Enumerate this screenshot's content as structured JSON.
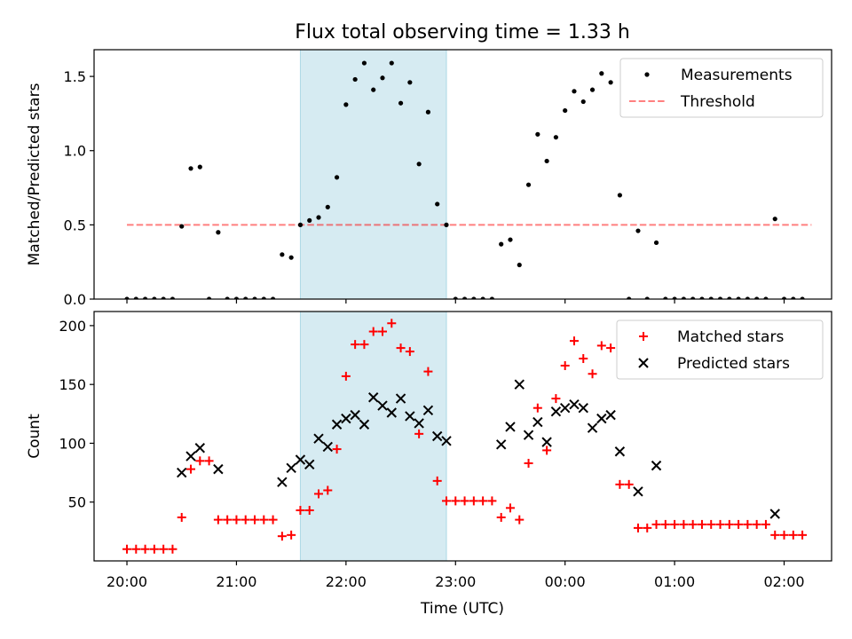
{
  "colors": {
    "span": "#add8e6",
    "measurement": "#000000",
    "threshold": "#ff0000",
    "matched": "#ff0000",
    "predicted": "#000000"
  },
  "chart_data": [
    {
      "type": "scatter",
      "title": "Flux total observing time = 1.33 h",
      "xlabel": "",
      "ylabel": "Matched/Predicted stars",
      "xlim": [
        "19:42",
        "02:26"
      ],
      "ylim": [
        0,
        1.68
      ],
      "yticks": [
        0.0,
        0.5,
        1.0,
        1.5
      ],
      "ytick_labels": [
        "0.0",
        "0.5",
        "1.0",
        "1.5"
      ],
      "xticks": [
        "20:00",
        "21:00",
        "22:00",
        "23:00",
        "00:00",
        "01:00",
        "02:00"
      ],
      "highlight_span": [
        "21:35",
        "22:55"
      ],
      "legend": {
        "position": "top-right",
        "entries": [
          "Measurements",
          "Threshold"
        ]
      },
      "threshold": {
        "name": "Threshold",
        "value": 0.5,
        "x_range": [
          "20:00",
          "02:15"
        ],
        "style": "dashed"
      },
      "series": [
        {
          "name": "Measurements",
          "marker": "dot",
          "points": [
            [
              "20:00",
              0
            ],
            [
              "20:05",
              0
            ],
            [
              "20:10",
              0
            ],
            [
              "20:15",
              0
            ],
            [
              "20:20",
              0
            ],
            [
              "20:25",
              0
            ],
            [
              "20:30",
              0.49
            ],
            [
              "20:35",
              0.88
            ],
            [
              "20:40",
              0.89
            ],
            [
              "20:45",
              0
            ],
            [
              "20:50",
              0.45
            ],
            [
              "20:55",
              0
            ],
            [
              "21:00",
              0
            ],
            [
              "21:05",
              0
            ],
            [
              "21:10",
              0
            ],
            [
              "21:15",
              0
            ],
            [
              "21:20",
              0
            ],
            [
              "21:25",
              0.3
            ],
            [
              "21:30",
              0.28
            ],
            [
              "21:35",
              0.5
            ],
            [
              "21:40",
              0.53
            ],
            [
              "21:45",
              0.55
            ],
            [
              "21:50",
              0.62
            ],
            [
              "21:55",
              0.82
            ],
            [
              "22:00",
              1.31
            ],
            [
              "22:05",
              1.48
            ],
            [
              "22:10",
              1.59
            ],
            [
              "22:15",
              1.41
            ],
            [
              "22:20",
              1.49
            ],
            [
              "22:25",
              1.59
            ],
            [
              "22:30",
              1.32
            ],
            [
              "22:35",
              1.46
            ],
            [
              "22:40",
              0.91
            ],
            [
              "22:45",
              1.26
            ],
            [
              "22:50",
              0.64
            ],
            [
              "22:55",
              0.5
            ],
            [
              "23:00",
              0
            ],
            [
              "23:05",
              0
            ],
            [
              "23:10",
              0
            ],
            [
              "23:15",
              0
            ],
            [
              "23:20",
              0
            ],
            [
              "23:25",
              0.37
            ],
            [
              "23:30",
              0.4
            ],
            [
              "23:35",
              0.23
            ],
            [
              "23:40",
              0.77
            ],
            [
              "23:45",
              1.11
            ],
            [
              "23:50",
              0.93
            ],
            [
              "23:55",
              1.09
            ],
            [
              "00:00",
              1.27
            ],
            [
              "00:05",
              1.4
            ],
            [
              "00:10",
              1.33
            ],
            [
              "00:15",
              1.41
            ],
            [
              "00:20",
              1.52
            ],
            [
              "00:25",
              1.46
            ],
            [
              "00:30",
              0.7
            ],
            [
              "00:35",
              0
            ],
            [
              "00:40",
              0.46
            ],
            [
              "00:45",
              0
            ],
            [
              "00:50",
              0.38
            ],
            [
              "00:55",
              0
            ],
            [
              "01:00",
              0
            ],
            [
              "01:05",
              0
            ],
            [
              "01:10",
              0
            ],
            [
              "01:15",
              0
            ],
            [
              "01:20",
              0
            ],
            [
              "01:25",
              0
            ],
            [
              "01:30",
              0
            ],
            [
              "01:35",
              0
            ],
            [
              "01:40",
              0
            ],
            [
              "01:45",
              0
            ],
            [
              "01:50",
              0
            ],
            [
              "01:55",
              0.54
            ],
            [
              "02:00",
              0
            ],
            [
              "02:05",
              0
            ],
            [
              "02:10",
              0
            ]
          ]
        }
      ]
    },
    {
      "type": "scatter",
      "title": "",
      "xlabel": "Time (UTC)",
      "ylabel": "Count",
      "xlim": [
        "19:42",
        "02:26"
      ],
      "ylim": [
        0,
        212
      ],
      "yticks": [
        50,
        100,
        150,
        200
      ],
      "ytick_labels": [
        "50",
        "100",
        "150",
        "200"
      ],
      "xticks": [
        "20:00",
        "21:00",
        "22:00",
        "23:00",
        "00:00",
        "01:00",
        "02:00"
      ],
      "highlight_span": [
        "21:35",
        "22:55"
      ],
      "legend": {
        "position": "top-right",
        "entries": [
          "Matched stars",
          "Predicted stars"
        ]
      },
      "series": [
        {
          "name": "Matched stars",
          "marker": "plus",
          "points": [
            [
              "20:00",
              10
            ],
            [
              "20:05",
              10
            ],
            [
              "20:10",
              10
            ],
            [
              "20:15",
              10
            ],
            [
              "20:20",
              10
            ],
            [
              "20:25",
              10
            ],
            [
              "20:30",
              37
            ],
            [
              "20:35",
              78
            ],
            [
              "20:40",
              85
            ],
            [
              "20:45",
              85
            ],
            [
              "20:50",
              35
            ],
            [
              "20:55",
              35
            ],
            [
              "21:00",
              35
            ],
            [
              "21:05",
              35
            ],
            [
              "21:10",
              35
            ],
            [
              "21:15",
              35
            ],
            [
              "21:20",
              35
            ],
            [
              "21:25",
              21
            ],
            [
              "21:30",
              22
            ],
            [
              "21:35",
              43
            ],
            [
              "21:40",
              43
            ],
            [
              "21:45",
              57
            ],
            [
              "21:50",
              60
            ],
            [
              "21:55",
              95
            ],
            [
              "22:00",
              157
            ],
            [
              "22:05",
              184
            ],
            [
              "22:10",
              184
            ],
            [
              "22:15",
              195
            ],
            [
              "22:20",
              195
            ],
            [
              "22:25",
              202
            ],
            [
              "22:30",
              181
            ],
            [
              "22:35",
              178
            ],
            [
              "22:40",
              108
            ],
            [
              "22:45",
              161
            ],
            [
              "22:50",
              68
            ],
            [
              "22:55",
              51
            ],
            [
              "23:00",
              51
            ],
            [
              "23:05",
              51
            ],
            [
              "23:10",
              51
            ],
            [
              "23:15",
              51
            ],
            [
              "23:20",
              51
            ],
            [
              "23:25",
              37
            ],
            [
              "23:30",
              45
            ],
            [
              "23:35",
              35
            ],
            [
              "23:40",
              83
            ],
            [
              "23:45",
              130
            ],
            [
              "23:50",
              94
            ],
            [
              "23:55",
              138
            ],
            [
              "00:00",
              166
            ],
            [
              "00:05",
              187
            ],
            [
              "00:10",
              172
            ],
            [
              "00:15",
              159
            ],
            [
              "00:20",
              183
            ],
            [
              "00:25",
              181
            ],
            [
              "00:30",
              65
            ],
            [
              "00:35",
              65
            ],
            [
              "00:40",
              28
            ],
            [
              "00:45",
              28
            ],
            [
              "00:50",
              31
            ],
            [
              "00:55",
              31
            ],
            [
              "01:00",
              31
            ],
            [
              "01:05",
              31
            ],
            [
              "01:10",
              31
            ],
            [
              "01:15",
              31
            ],
            [
              "01:20",
              31
            ],
            [
              "01:25",
              31
            ],
            [
              "01:30",
              31
            ],
            [
              "01:35",
              31
            ],
            [
              "01:40",
              31
            ],
            [
              "01:45",
              31
            ],
            [
              "01:50",
              31
            ],
            [
              "01:55",
              22
            ],
            [
              "02:00",
              22
            ],
            [
              "02:05",
              22
            ],
            [
              "02:10",
              22
            ]
          ]
        },
        {
          "name": "Predicted stars",
          "marker": "x",
          "points": [
            [
              "20:30",
              75
            ],
            [
              "20:35",
              89
            ],
            [
              "20:40",
              96
            ],
            [
              "20:50",
              78
            ],
            [
              "21:25",
              67
            ],
            [
              "21:30",
              79
            ],
            [
              "21:35",
              86
            ],
            [
              "21:40",
              82
            ],
            [
              "21:45",
              104
            ],
            [
              "21:50",
              97
            ],
            [
              "21:55",
              116
            ],
            [
              "22:00",
              121
            ],
            [
              "22:05",
              124
            ],
            [
              "22:10",
              116
            ],
            [
              "22:15",
              139
            ],
            [
              "22:20",
              132
            ],
            [
              "22:25",
              126
            ],
            [
              "22:30",
              138
            ],
            [
              "22:35",
              123
            ],
            [
              "22:40",
              117
            ],
            [
              "22:45",
              128
            ],
            [
              "22:50",
              106
            ],
            [
              "22:55",
              102
            ],
            [
              "23:25",
              99
            ],
            [
              "23:30",
              114
            ],
            [
              "23:35",
              150
            ],
            [
              "23:40",
              107
            ],
            [
              "23:45",
              118
            ],
            [
              "23:50",
              101
            ],
            [
              "23:55",
              127
            ],
            [
              "00:00",
              130
            ],
            [
              "00:05",
              133
            ],
            [
              "00:10",
              130
            ],
            [
              "00:15",
              113
            ],
            [
              "00:20",
              121
            ],
            [
              "00:25",
              124
            ],
            [
              "00:30",
              93
            ],
            [
              "00:40",
              59
            ],
            [
              "00:50",
              81
            ],
            [
              "01:55",
              40
            ]
          ]
        }
      ]
    }
  ]
}
